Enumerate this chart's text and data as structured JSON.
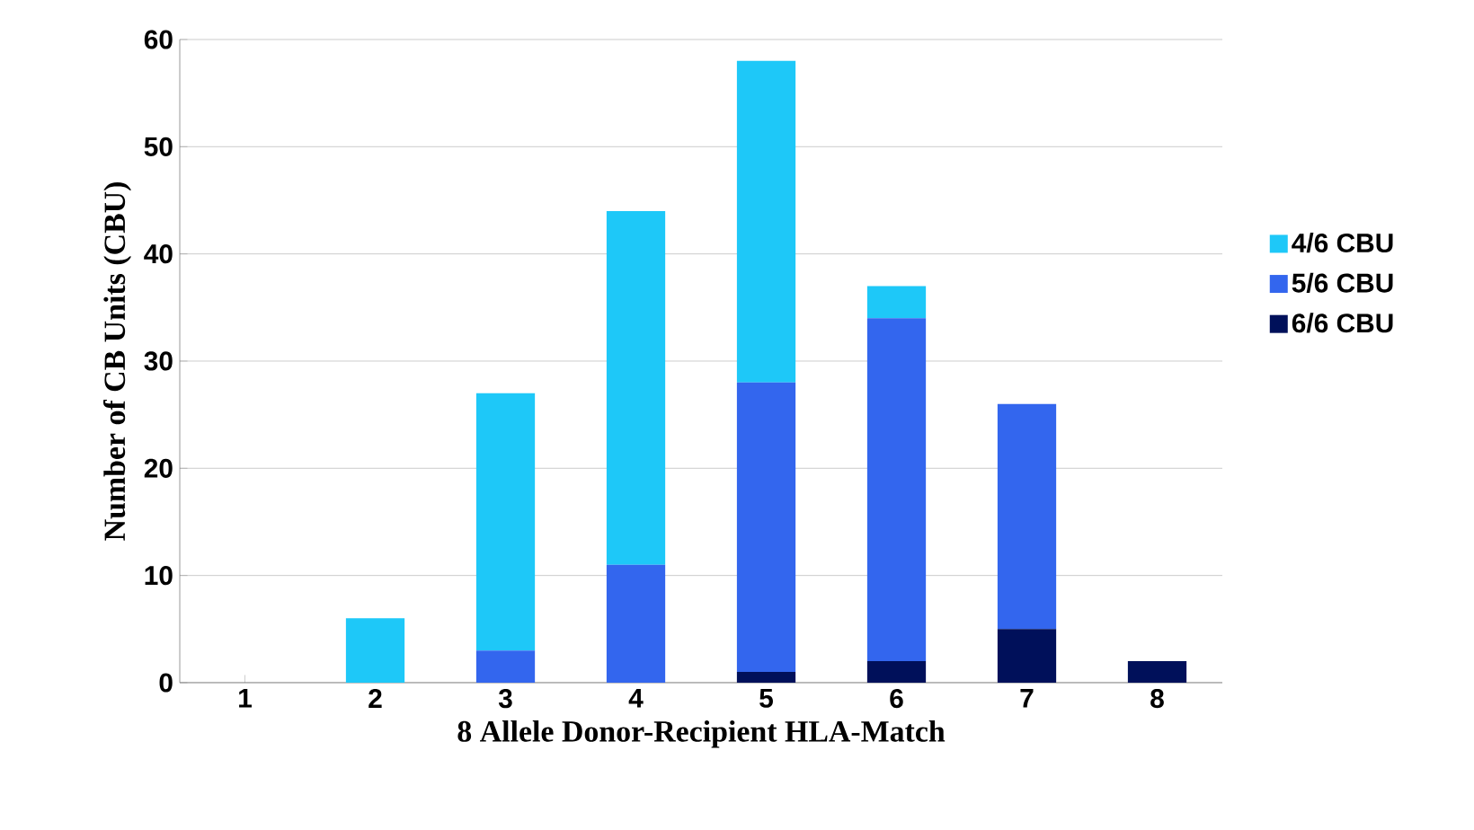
{
  "chart_data": {
    "type": "bar",
    "stacked": true,
    "xlabel": "8 Allele Donor-Recipient HLA-Match",
    "ylabel": "Number of CB Units (CBU)",
    "categories": [
      "1",
      "2",
      "3",
      "4",
      "5",
      "6",
      "7",
      "8"
    ],
    "series": [
      {
        "name": "6/6 CBU",
        "color": "#00105a",
        "values": [
          0,
          0,
          0,
          0,
          1,
          2,
          5,
          2
        ]
      },
      {
        "name": "5/6 CBU",
        "color": "#3366ee",
        "values": [
          0,
          0,
          3,
          11,
          27,
          32,
          21,
          0
        ]
      },
      {
        "name": "4/6 CBU",
        "color": "#1ec8f8",
        "values": [
          0,
          6,
          24,
          33,
          30,
          3,
          0,
          0
        ]
      }
    ],
    "ylim": [
      0,
      60
    ],
    "yticks": [
      0,
      10,
      20,
      30,
      40,
      50,
      60
    ],
    "grid": "y",
    "legend": "right"
  }
}
